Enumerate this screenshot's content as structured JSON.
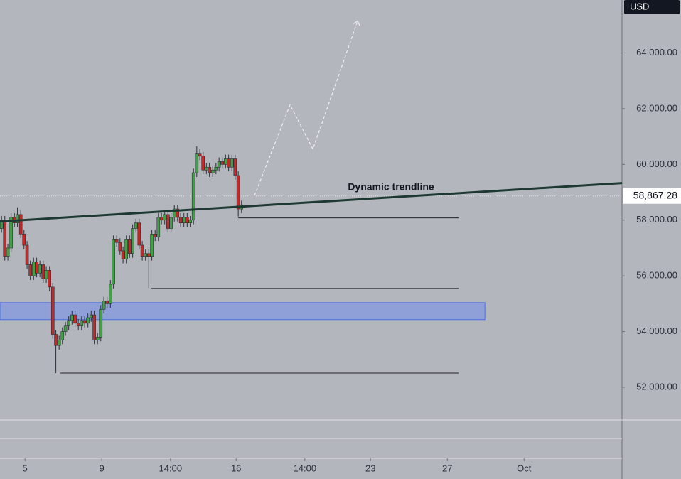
{
  "chart_data": {
    "type": "candlestick",
    "currency": "USD",
    "x": [
      3.78,
      3.95,
      4.11,
      4.28,
      4.45,
      4.61,
      4.78,
      4.95,
      5.11,
      5.28,
      5.45,
      5.61,
      5.78,
      5.95,
      6.11,
      6.28,
      6.45,
      6.61,
      6.78,
      6.95,
      7.11,
      7.28,
      7.45,
      7.61,
      7.78,
      7.95,
      8.11,
      8.28,
      8.45,
      8.61,
      8.78,
      8.95,
      9.11,
      9.28,
      9.45,
      9.61,
      9.78,
      9.95,
      10.11,
      10.28,
      10.45,
      10.61,
      10.78,
      10.95,
      11.11,
      11.28,
      11.45,
      11.61,
      11.78,
      11.95,
      12.11,
      12.28,
      12.45,
      12.61,
      12.78,
      12.95,
      13.11,
      13.28,
      13.45,
      13.61,
      13.78,
      13.95,
      14.11,
      14.28,
      14.45,
      14.61,
      14.78,
      14.95,
      15.11,
      15.28,
      15.45,
      15.61,
      15.78,
      15.95,
      16.11,
      16.28
    ],
    "open": [
      57700,
      58000,
      56700,
      57000,
      58100,
      57900,
      58200,
      57500,
      57100,
      56400,
      56000,
      56500,
      56100,
      56400,
      55900,
      56200,
      55600,
      53900,
      53500,
      53700,
      54000,
      54200,
      54400,
      54600,
      54300,
      54200,
      54400,
      54300,
      54500,
      54600,
      53700,
      53800,
      54800,
      55100,
      55000,
      55700,
      57300,
      57200,
      56900,
      56600,
      57300,
      56800,
      57700,
      57900,
      57100,
      56700,
      56800,
      56700,
      57500,
      57400,
      58100,
      58000,
      58200,
      57700,
      58100,
      58400,
      58100,
      57900,
      58100,
      57900,
      58000,
      59700,
      60400,
      60300,
      59800,
      59900,
      59700,
      59800,
      59900,
      60100,
      60000,
      60200,
      59900,
      60200,
      59600,
      58400
    ],
    "high": [
      58150,
      58150,
      57150,
      58250,
      58250,
      58460,
      58350,
      57650,
      57250,
      56550,
      56650,
      56650,
      56550,
      56550,
      56350,
      56350,
      55750,
      54050,
      53850,
      54150,
      54350,
      54550,
      54750,
      54750,
      54450,
      54550,
      54550,
      54650,
      54750,
      54750,
      53950,
      54950,
      55250,
      55250,
      55850,
      57450,
      57450,
      57350,
      57050,
      57450,
      57450,
      57850,
      58050,
      58050,
      57250,
      56950,
      56950,
      57650,
      57650,
      58250,
      58250,
      58350,
      58350,
      58250,
      58550,
      58550,
      58250,
      58250,
      58250,
      58150,
      59850,
      60650,
      60550,
      60450,
      60050,
      60050,
      59950,
      60050,
      60250,
      60250,
      60350,
      60350,
      60350,
      60350,
      59750,
      58700
    ],
    "low": [
      57550,
      56550,
      56550,
      56850,
      57750,
      57750,
      57350,
      56950,
      56250,
      55850,
      55850,
      55950,
      55950,
      55750,
      55750,
      55450,
      53750,
      52510,
      53350,
      53550,
      53850,
      54050,
      54250,
      54150,
      54050,
      54050,
      54150,
      54150,
      54350,
      53550,
      53550,
      53650,
      54650,
      54850,
      54850,
      55550,
      57050,
      56750,
      56450,
      56450,
      56650,
      56650,
      57550,
      56950,
      56550,
      56550,
      55570,
      56550,
      57250,
      57250,
      57850,
      57850,
      57550,
      57550,
      57950,
      57950,
      57750,
      57750,
      57750,
      57750,
      57850,
      59550,
      60150,
      59650,
      59650,
      59550,
      59550,
      59650,
      59750,
      59850,
      59850,
      59750,
      59750,
      59450,
      58130,
      58250
    ],
    "close": [
      58000,
      56700,
      57000,
      58100,
      57900,
      58200,
      57500,
      57100,
      56400,
      56000,
      56500,
      56100,
      56400,
      55900,
      56200,
      55600,
      53900,
      53500,
      53700,
      54000,
      54200,
      54400,
      54600,
      54300,
      54200,
      54400,
      54300,
      54500,
      54600,
      53700,
      53800,
      54800,
      55100,
      55000,
      55700,
      57300,
      57200,
      56900,
      56600,
      57300,
      56800,
      57700,
      57900,
      57100,
      56700,
      56800,
      56700,
      57500,
      57400,
      58100,
      58000,
      58200,
      57700,
      58100,
      58400,
      58100,
      57900,
      58100,
      57900,
      58000,
      59700,
      60400,
      60300,
      59800,
      59900,
      59700,
      59800,
      59900,
      60100,
      60000,
      60200,
      59900,
      60200,
      59600,
      58400,
      58550
    ],
    "up_color": "#43a047",
    "down_color": "#c62828",
    "xlim": [
      3.7,
      36.1
    ],
    "xticks": [
      5,
      9,
      {
        "value": 12.58,
        "label": "14:00"
      },
      16,
      {
        "value": 19.58,
        "label": "14:00"
      },
      23,
      27,
      {
        "value": 31,
        "label": "Oct"
      }
    ],
    "ylim": [
      49450,
      65900
    ],
    "yticks": [
      {
        "value": 52000,
        "label": "52,000.00"
      },
      {
        "value": 54000,
        "label": "54,000.00"
      },
      {
        "value": 56000,
        "label": "56,000.00"
      },
      {
        "value": 58000,
        "label": "58,000.00"
      },
      {
        "value": 60000,
        "label": "60,000.00"
      },
      {
        "value": 62000,
        "label": "62,000.00"
      },
      {
        "value": 64000,
        "label": "64,000.00"
      }
    ],
    "current_price": {
      "value": 58867.28,
      "label": "58,867.28"
    },
    "trendline": {
      "label": "Dynamic trendline",
      "x": [
        3.7,
        36.1
      ],
      "y": [
        57950,
        59330
      ],
      "color": "#1e3832"
    },
    "levels": [
      {
        "x": [
          16.11,
          27.59
        ],
        "value": 58080
      },
      {
        "x": [
          11.59,
          27.59
        ],
        "value": 55550
      },
      {
        "x": [
          6.85,
          27.59
        ],
        "value": 52510
      }
    ],
    "zone": {
      "x": [
        3.7,
        28.96
      ],
      "low": 54430,
      "high": 55040,
      "color": "#8fa0d8"
    },
    "projection": {
      "x": [
        16.96,
        18.81,
        20.0,
        22.33
      ],
      "y": [
        58890,
        62140,
        60550,
        65150
      ]
    }
  }
}
